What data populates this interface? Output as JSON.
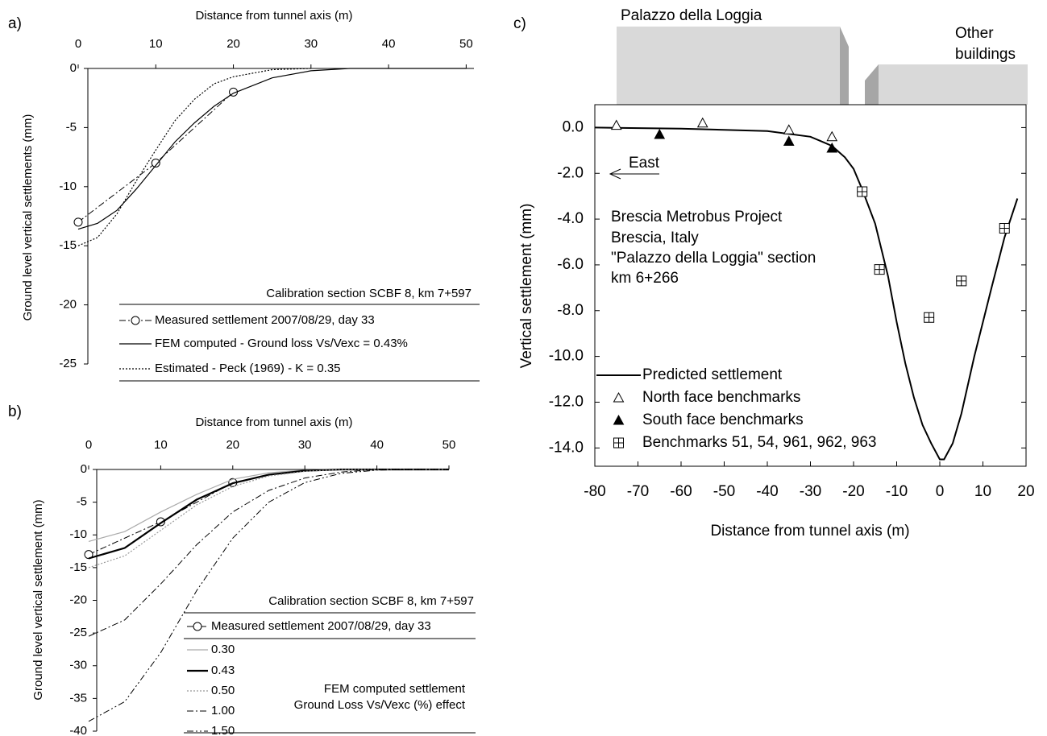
{
  "chart_data": [
    {
      "type": "line",
      "panel_label": "a)",
      "xlabel": "Distance from tunnel axis (m)",
      "ylabel": "Ground level vertical settlements (mm)",
      "xlim": [
        0,
        51
      ],
      "ylim": [
        -25,
        0
      ],
      "xticks": [
        0,
        10,
        20,
        30,
        40,
        50
      ],
      "yticks": [
        0,
        -5,
        -10,
        -15,
        -20,
        -25
      ],
      "legend_title": "Calibration section SCBF 8, km 7+597",
      "series": [
        {
          "name": "Measured settlement 2007/08/29, day 33",
          "color": "#000000",
          "style": "dashdot",
          "marker": "circle",
          "linewidth": 1,
          "x": [
            0,
            10,
            20
          ],
          "values": [
            -13,
            -8,
            -2
          ]
        },
        {
          "name": "FEM computed  - Ground loss Vs/Vexc = 0.43%",
          "color": "#000000",
          "style": "solid",
          "linewidth": 1.2,
          "x": [
            0,
            2.5,
            5,
            7.5,
            10,
            12.5,
            15,
            17.5,
            20,
            25,
            30,
            35,
            40,
            45,
            50
          ],
          "values": [
            -13.6,
            -13.1,
            -12,
            -10.2,
            -8.2,
            -6.2,
            -4.6,
            -3.2,
            -2.1,
            -0.8,
            -0.2,
            0,
            0,
            0,
            0
          ]
        },
        {
          "name": "Estimated - Peck (1969) - K = 0.35",
          "color": "#000000",
          "style": "dotted",
          "linewidth": 1.2,
          "x": [
            0,
            2.5,
            5,
            7.5,
            10,
            12.5,
            15,
            17.5,
            20,
            25,
            30
          ],
          "values": [
            -15,
            -14.3,
            -12.3,
            -9.5,
            -6.9,
            -4.4,
            -2.6,
            -1.3,
            -0.7,
            -0.1,
            0
          ]
        }
      ]
    },
    {
      "type": "line",
      "panel_label": "b)",
      "xlabel": "Distance from tunnel axis (m)",
      "ylabel": "Ground level vertical settlement (mm)",
      "xlim": [
        0,
        50
      ],
      "ylim": [
        -40,
        0
      ],
      "xticks": [
        0,
        10,
        20,
        30,
        40,
        50
      ],
      "yticks": [
        0,
        -5,
        -10,
        -15,
        -20,
        -25,
        -30,
        -35,
        -40
      ],
      "legend_title": "Calibration section SCBF 8, km 7+597",
      "annotations": [
        "FEM computed settlement",
        "Ground Loss Vs/Vexc (%) effect"
      ],
      "series": [
        {
          "name": "Measured settlement 2007/08/29, day 33",
          "color": "#000000",
          "style": "dashdot",
          "marker": "circle",
          "linewidth": 1,
          "x": [
            0,
            10,
            20
          ],
          "values": [
            -13,
            -8,
            -2
          ]
        },
        {
          "name": "0.30",
          "color": "#aaaaaa",
          "style": "solid",
          "linewidth": 1.2,
          "x": [
            0,
            5,
            10,
            15,
            20,
            25,
            30,
            35,
            40,
            45,
            50
          ],
          "values": [
            -11,
            -9.5,
            -6.5,
            -3.8,
            -1.5,
            -0.5,
            -0.1,
            0,
            0,
            0,
            0
          ]
        },
        {
          "name": "0.43",
          "color": "#000000",
          "style": "solid",
          "linewidth": 2.2,
          "x": [
            0,
            5,
            10,
            15,
            20,
            25,
            30,
            35,
            40,
            45,
            50
          ],
          "values": [
            -13.6,
            -12,
            -8.2,
            -4.6,
            -2.1,
            -0.8,
            -0.2,
            0,
            0,
            0,
            0
          ]
        },
        {
          "name": "0.50",
          "color": "#999999",
          "style": "dotted",
          "linewidth": 1.2,
          "x": [
            0,
            5,
            10,
            15,
            20,
            25,
            30,
            35,
            40,
            45,
            50
          ],
          "values": [
            -15,
            -13.2,
            -9.3,
            -5.4,
            -2.6,
            -1,
            -0.3,
            0,
            0,
            0,
            0
          ]
        },
        {
          "name": "1.00",
          "color": "#000000",
          "style": "dashdot",
          "linewidth": 1,
          "x": [
            0,
            5,
            10,
            15,
            20,
            25,
            30,
            35,
            40,
            45,
            50
          ],
          "values": [
            -25.5,
            -23,
            -17.5,
            -11.5,
            -6.5,
            -3.2,
            -1.3,
            -0.4,
            0,
            0,
            0
          ]
        },
        {
          "name": "1.50",
          "color": "#000000",
          "style": "dashdotdot",
          "linewidth": 1,
          "x": [
            0,
            5,
            10,
            15,
            20,
            25,
            30,
            35,
            40,
            45,
            50
          ],
          "values": [
            -38.5,
            -35.5,
            -28,
            -18.5,
            -10.5,
            -5,
            -2,
            -0.6,
            -0.1,
            0,
            0
          ]
        }
      ]
    },
    {
      "type": "line",
      "panel_label": "c)",
      "xlabel": "Distance from tunnel axis (m)",
      "ylabel": "Vertical settlement (mm)",
      "xlim": [
        -80,
        20
      ],
      "ylim": [
        -14.8,
        1
      ],
      "xticks": [
        -80,
        -70,
        -60,
        -50,
        -40,
        -30,
        -20,
        -10,
        0,
        10,
        20
      ],
      "yticks": [
        {
          "value": 0,
          "label": "0.0"
        },
        {
          "value": -2,
          "label": "-2.0"
        },
        {
          "value": -4,
          "label": "-4.0"
        },
        {
          "value": -6,
          "label": "-6.0"
        },
        {
          "value": -8,
          "label": "-8.0"
        },
        {
          "value": -10,
          "label": "-10.0"
        },
        {
          "value": -12,
          "label": "-12.0"
        },
        {
          "value": -14,
          "label": "-14.0"
        }
      ],
      "annotations": [
        "Brescia Metrobus Project",
        "Brescia, Italy",
        "\"Palazzo della Loggia\" section",
        "km 6+266"
      ],
      "direction_label": "East",
      "buildings": [
        "Palazzo della Loggia",
        "Other",
        "buildings"
      ],
      "series": [
        {
          "name": "Predicted settlement",
          "color": "#000000",
          "style": "solid",
          "linewidth": 2,
          "x": [
            -80,
            -60,
            -40,
            -30,
            -25,
            -22,
            -20,
            -18,
            -15,
            -12,
            -10,
            -8,
            -6,
            -4,
            -2,
            0,
            1,
            3,
            5,
            8,
            10,
            12,
            15,
            18
          ],
          "values": [
            0,
            -0.05,
            -0.15,
            -0.4,
            -0.8,
            -1.3,
            -1.8,
            -2.7,
            -4.2,
            -6.5,
            -8.5,
            -10.3,
            -11.8,
            -13,
            -13.8,
            -14.5,
            -14.5,
            -13.8,
            -12.5,
            -10,
            -8.5,
            -7,
            -4.8,
            -3.1
          ]
        },
        {
          "name": "North face benchmarks",
          "color": "#000000",
          "style": "none",
          "marker": "triangle-open",
          "x": [
            -75,
            -55,
            -35,
            -25
          ],
          "values": [
            0.1,
            0.2,
            -0.1,
            -0.4
          ]
        },
        {
          "name": "South face benchmarks",
          "color": "#000000",
          "style": "none",
          "marker": "triangle-filled",
          "x": [
            -65,
            -35,
            -25
          ],
          "values": [
            -0.3,
            -0.6,
            -0.9
          ]
        },
        {
          "name": "Benchmarks 51, 54, 961, 962, 963",
          "color": "#000000",
          "style": "none",
          "marker": "square-plus",
          "x": [
            -18,
            -14,
            -2.5,
            5,
            15
          ],
          "values": [
            -2.8,
            -6.2,
            -8.3,
            -6.7,
            -4.4
          ]
        }
      ]
    }
  ]
}
